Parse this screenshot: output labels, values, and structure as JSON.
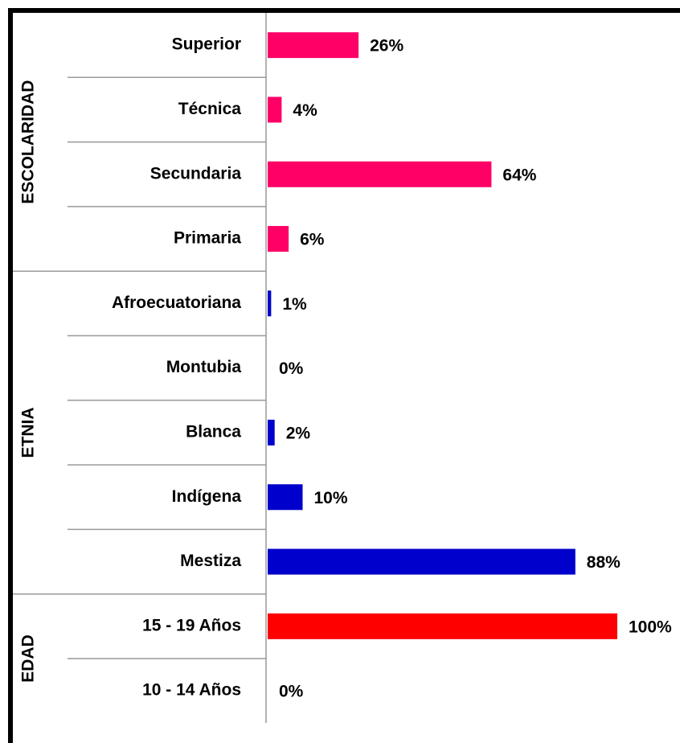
{
  "chart_data": {
    "type": "bar",
    "orientation": "horizontal",
    "xlim": [
      0,
      100
    ],
    "groups": [
      {
        "name": "ESCOLARIDAD",
        "color": "#ff0066",
        "categories": [
          "Superior",
          "Técnica",
          "Secundaria",
          "Primaria"
        ],
        "values": [
          26,
          4,
          64,
          6
        ],
        "value_labels": [
          "26%",
          "4%",
          "64%",
          "6%"
        ]
      },
      {
        "name": "ETNIA",
        "color": "#0000cc",
        "categories": [
          "Afroecuatoriana",
          "Montubia",
          "Blanca",
          "Indígena",
          "Mestiza"
        ],
        "values": [
          1,
          0,
          2,
          10,
          88
        ],
        "value_labels": [
          "1%",
          "0%",
          "2%",
          "10%",
          "88%"
        ]
      },
      {
        "name": "EDAD",
        "color": "#ff0000",
        "categories": [
          "15 - 19 Años",
          "10 - 14 Años"
        ],
        "values": [
          100,
          0
        ],
        "value_labels": [
          "100%",
          "0%"
        ]
      }
    ]
  }
}
